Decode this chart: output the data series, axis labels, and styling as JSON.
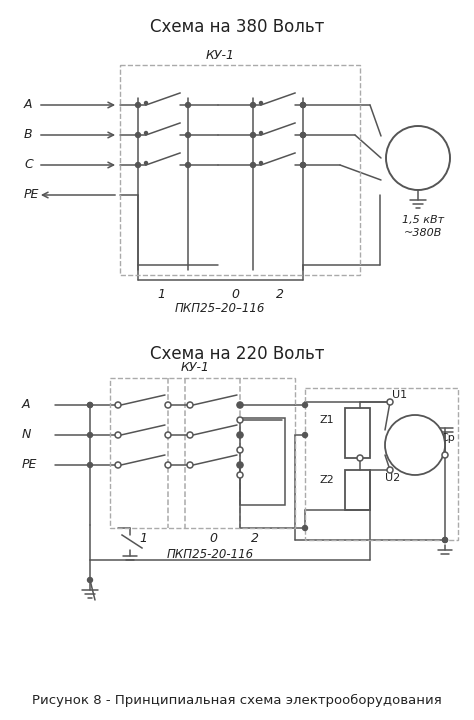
{
  "title1": "Схема на 380 Вольт",
  "title2": "Схема на 220 Вольт",
  "caption": "Рисунок 8 - Принципиальная схема электрооборудования",
  "bg_color": "#ffffff",
  "line_color": "#555555",
  "dash_color": "#aaaaaa",
  "text_color": "#222222"
}
